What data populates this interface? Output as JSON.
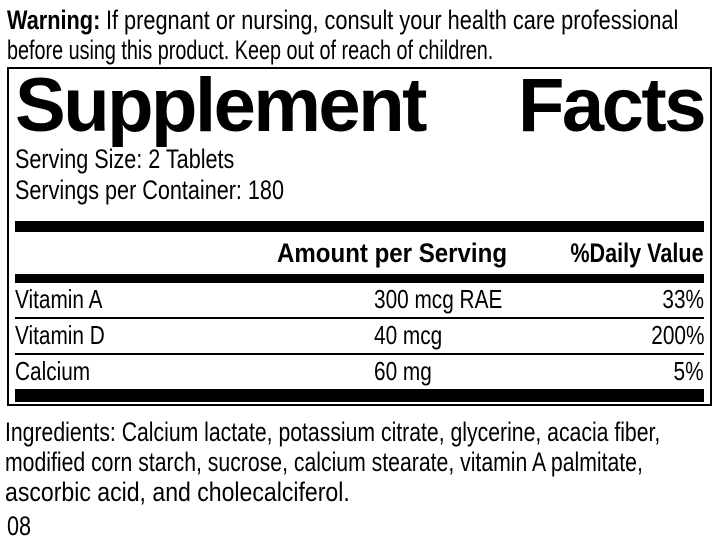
{
  "colors": {
    "text": "#000000",
    "background": "#ffffff"
  },
  "warning": {
    "label": "Warning:",
    "line1_rest": "If pregnant or nursing, consult your health care professional",
    "line2": "before using this product. Keep out of reach of children."
  },
  "panel": {
    "title_words": [
      "Supplement",
      "Facts"
    ],
    "serving_size": "Serving Size: 2 Tablets",
    "servings_per_container": "Servings per Container: 180",
    "columns": {
      "amount": "Amount per Serving",
      "daily_value": "%Daily Value"
    },
    "rows": [
      {
        "name": "Vitamin A",
        "amount": "300 mcg RAE",
        "dv": "33%"
      },
      {
        "name": "Vitamin D",
        "amount": "40 mcg",
        "dv": "200%"
      },
      {
        "name": "Calcium",
        "amount": "60 mg",
        "dv": "5%"
      }
    ]
  },
  "ingredients": {
    "lines": [
      "Ingredients: Calcium lactate, potassium citrate, glycerine, acacia fiber,",
      "modified corn starch, sucrose, calcium stearate, vitamin A palmitate,",
      "ascorbic acid, and cholecalciferol."
    ]
  },
  "footer": {
    "code": "08"
  }
}
